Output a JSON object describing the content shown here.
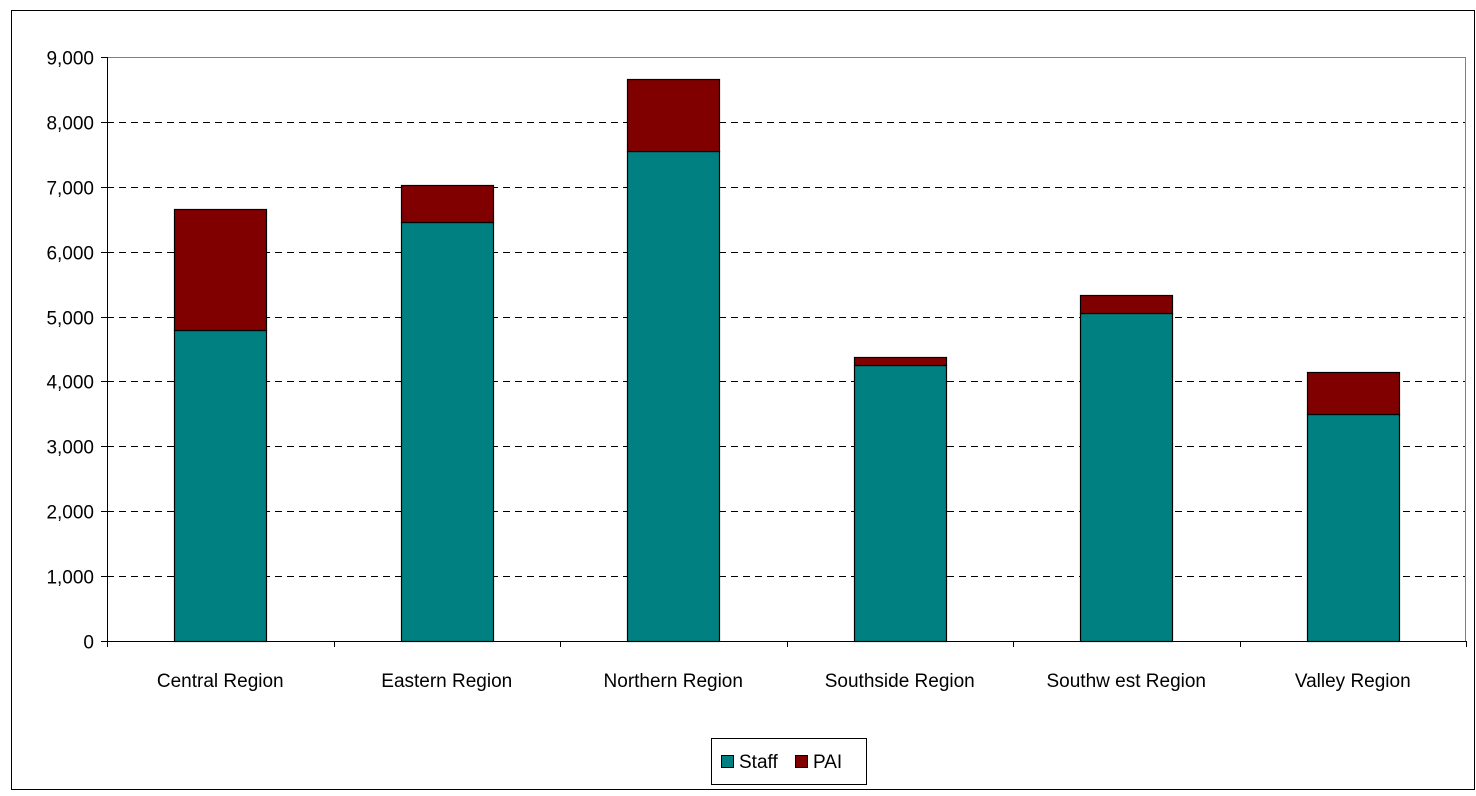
{
  "chart_data": {
    "type": "bar",
    "stacked": true,
    "title": "",
    "xlabel": "",
    "ylabel": "",
    "categories": [
      "Central Region",
      "Eastern Region",
      "Northern Region",
      "Southside Region",
      "Southw est Region",
      "Valley Region"
    ],
    "series": [
      {
        "name": "Staff",
        "color": "#008080",
        "values": [
          4800,
          6450,
          7550,
          4250,
          5050,
          3500
        ]
      },
      {
        "name": "PAI",
        "color": "#800000",
        "values": [
          1850,
          580,
          1110,
          130,
          280,
          650
        ]
      }
    ],
    "ylim": [
      0,
      9000
    ],
    "yticks": [
      0,
      1000,
      2000,
      3000,
      4000,
      5000,
      6000,
      7000,
      8000,
      9000
    ],
    "ytick_labels": [
      "0",
      "1,000",
      "2,000",
      "3,000",
      "4,000",
      "5,000",
      "6,000",
      "7,000",
      "8,000",
      "9,000"
    ],
    "grid": "horizontal dashed",
    "legend_position": "bottom-center",
    "colors": {
      "staff": "#008080",
      "pai": "#800000",
      "gridline": "#000000",
      "bar_border": "#000000"
    }
  }
}
